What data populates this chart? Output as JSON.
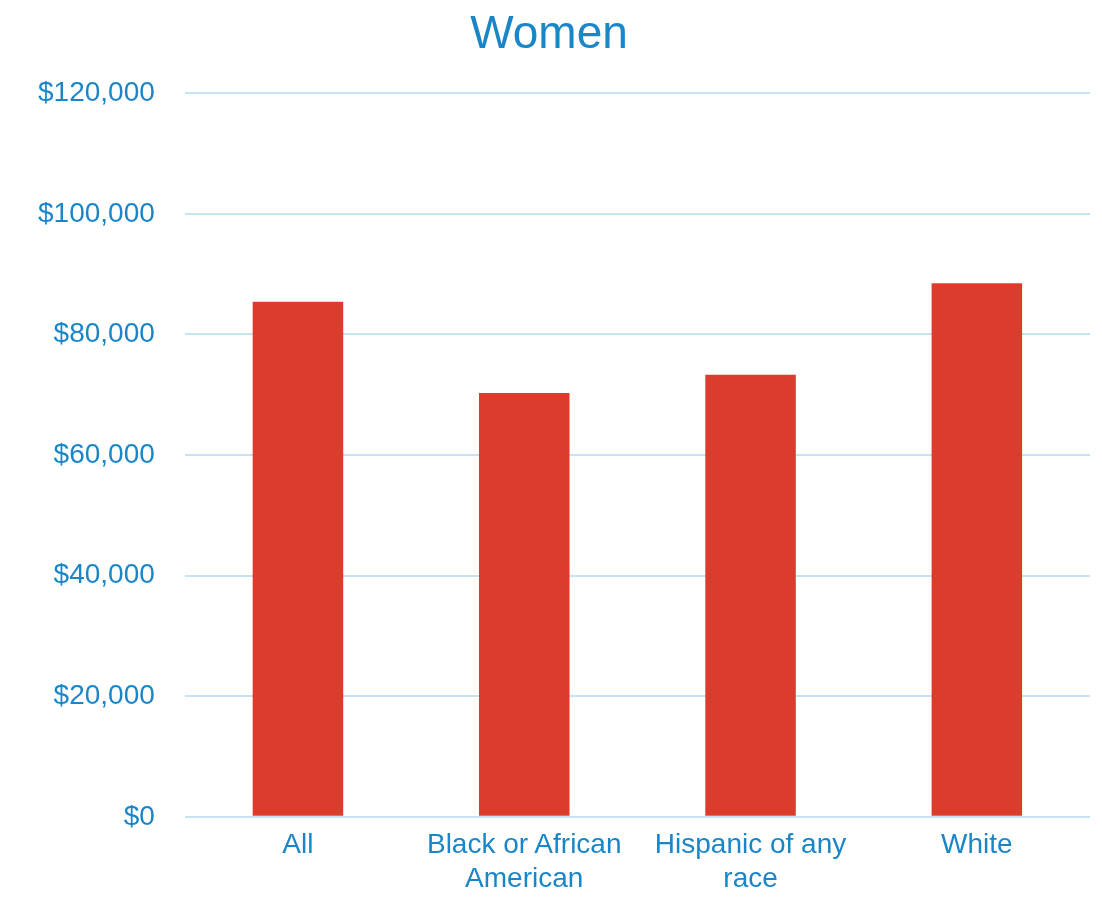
{
  "chart_data": {
    "type": "bar",
    "title": "Women",
    "categories": [
      "All",
      "Black or African American",
      "Hispanic of any race",
      "White"
    ],
    "values": [
      85400,
      70300,
      73300,
      88500
    ],
    "color": "#dc3c2c",
    "ylim": [
      0,
      120000
    ],
    "yticks": [
      {
        "value": 0,
        "label": "$0"
      },
      {
        "value": 20000,
        "label": "$20,000"
      },
      {
        "value": 40000,
        "label": "$40,000"
      },
      {
        "value": 60000,
        "label": "$60,000"
      },
      {
        "value": 80000,
        "label": "$80,000"
      },
      {
        "value": 100000,
        "label": "$100,000"
      },
      {
        "value": 120000,
        "label": "$120,000"
      }
    ],
    "grid": "y",
    "legend": false
  }
}
